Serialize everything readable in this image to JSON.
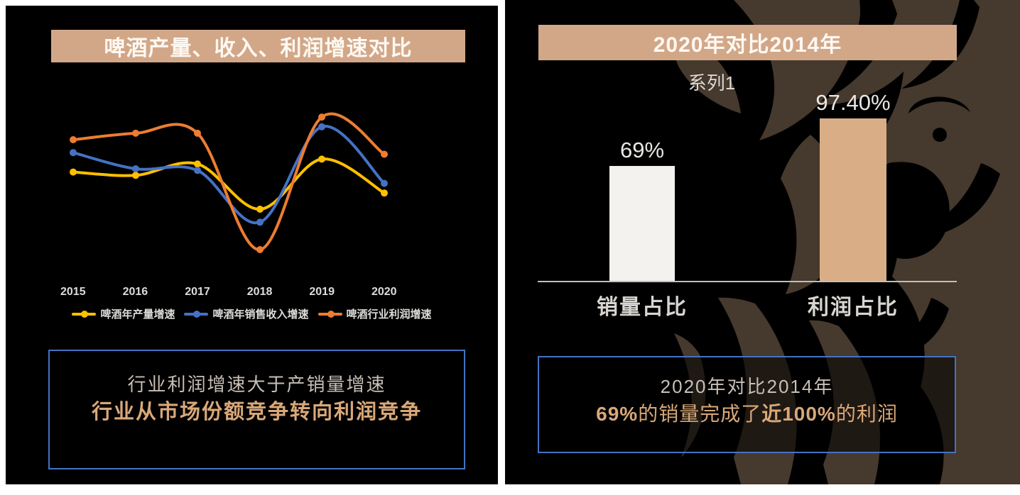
{
  "colors": {
    "page_bg": "#ffffff",
    "panel_bg": "#000000",
    "banner_bg": "#d2a788",
    "box_border": "#4472c4",
    "axis_line": "#bfbfbf",
    "lion": "#46392d",
    "accent_text": "#d9a878"
  },
  "left_panel": {
    "title": "啤酒产量、收入、利润增速对比",
    "insight": {
      "line1": "行业利润增速大于产销量增速",
      "line2": "行业从市场份额竞争转向利润竞争"
    }
  },
  "right_panel": {
    "title": "2020年对比2014年",
    "series_label": "系列1",
    "insight": {
      "line1": "2020年对比2014年",
      "line2_segments": [
        {
          "text": "69%",
          "bold": true
        },
        {
          "text": "的销量完成了",
          "bold": false
        },
        {
          "text": "近100%",
          "bold": true
        },
        {
          "text": "的利润",
          "bold": false
        }
      ]
    }
  },
  "chart_data": [
    {
      "type": "line",
      "title": "啤酒产量、收入、利润增速对比",
      "categories": [
        "2015",
        "2016",
        "2017",
        "2018",
        "2019",
        "2020"
      ],
      "series": [
        {
          "name": "啤酒年产量增速",
          "color": "#ffc000",
          "values": [
            60,
            58,
            65,
            37,
            68,
            47
          ]
        },
        {
          "name": "啤酒年销售收入增速",
          "color": "#4472c4",
          "values": [
            72,
            62,
            61,
            29,
            88,
            53
          ]
        },
        {
          "name": "啤酒行业利润增速",
          "color": "#ed7d31",
          "values": [
            80,
            84,
            84,
            12,
            94,
            71
          ]
        }
      ],
      "xlabel": "",
      "ylabel": "",
      "y_axis_note": "y axis unlabeled in source; values are relative estimates on a 0-100 plot scale",
      "ylim": [
        0,
        100
      ],
      "grid": false,
      "smooth": true,
      "markers": true,
      "legend_position": "bottom"
    },
    {
      "type": "bar",
      "title": "2020年对比2014年",
      "series_name": "系列1",
      "categories": [
        "销量占比",
        "利润占比"
      ],
      "values": [
        69,
        97.4
      ],
      "data_labels": [
        "69%",
        "97.40%"
      ],
      "bar_colors": [
        "#f4f2ef",
        "#d9ae87"
      ],
      "xlabel": "",
      "ylabel": "",
      "ylim": [
        0,
        100
      ],
      "grid": false,
      "legend_position": "none"
    }
  ]
}
